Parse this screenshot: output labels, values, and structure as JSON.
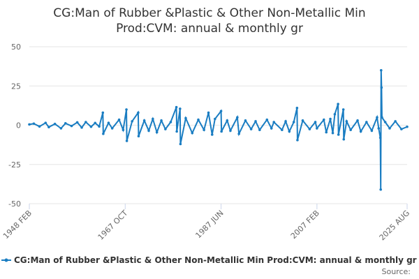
{
  "chart_data": {
    "type": "line",
    "title": "CG:Man of Rubber &Plastic & Other Non-Metallic Min Prod:CVM: annual & monthly gr",
    "source": "Source:",
    "x": [
      "1948 FEB",
      "1949 JAN",
      "1950 MAR",
      "1951 JUN",
      "1952 FEB",
      "1953 MAY",
      "1954 AUG",
      "1955 JUL",
      "1956 OCT",
      "1957 DEC",
      "1958 NOV",
      "1959 SEP",
      "1960 OCT",
      "1961 AUG",
      "1962 JUN",
      "1963 MAR",
      "1963 APR",
      "1964 MAY",
      "1965 FEB",
      "1966 JUL",
      "1967 MAY",
      "1968 JAN",
      "1968 FEB",
      "1969 MAR",
      "1970 JUN",
      "1970 JUL",
      "1971 SEP",
      "1972 AUG",
      "1973 JUN",
      "1974 APR",
      "1975 MAR",
      "1976 JAN",
      "1977 FEB",
      "1978 APR",
      "1978 MAY",
      "1979 JAN",
      "1979 FEB",
      "1980 MAR",
      "1981 JUL",
      "1982 OCT",
      "1983 DEC",
      "1984 NOV",
      "1985 AUG",
      "1986 MAR",
      "1987 JUN",
      "1987 JUL",
      "1988 SEP",
      "1989 MAY",
      "1990 OCT",
      "1991 FEB",
      "1992 JUN",
      "1993 AUG",
      "1994 JUL",
      "1995 MAY",
      "1996 NOV",
      "1997 OCT",
      "1998 APR",
      "1999 DEC",
      "2000 SEP",
      "2001 JUN",
      "2002 MAY",
      "2003 JAN",
      "2003 FEB",
      "2004 MAR",
      "2005 AUG",
      "2006 OCT",
      "2007 FEB",
      "2008 JUL",
      "2009 JAN",
      "2009 NOV",
      "2010 MAY",
      "2010 OCT",
      "2011 JUN",
      "2011 JUL",
      "2012 JUL",
      "2012 AUG",
      "2013 MAR",
      "2014 JAN",
      "2015 JUN",
      "2016 FEB",
      "2017 APR",
      "2018 MAY",
      "2019 JUN",
      "2019 OCT",
      "2020 FEB",
      "2020 MAR",
      "2020 APR",
      "2020 MAY",
      "2020 JUN",
      "2021 FEB",
      "2022 JAN",
      "2023 MAR",
      "2024 JUN",
      "2025 AUG"
    ],
    "series": [
      {
        "name": "CG:Man of Rubber &Plastic & Other Non-Metallic Min Prod:CVM: annual & monthly gr",
        "color": "#1a7dc2",
        "values": [
          0.5,
          1.0,
          -0.8,
          1.5,
          -1.2,
          0.8,
          -2.0,
          1.2,
          -0.5,
          1.8,
          -1.5,
          2.0,
          -1.0,
          1.4,
          -0.8,
          8.0,
          -5.5,
          1.5,
          -2.0,
          3.5,
          -3.0,
          10.0,
          -10.0,
          2.5,
          8.0,
          -7.0,
          3.0,
          -3.5,
          4.0,
          -4.5,
          3.0,
          -2.5,
          2.0,
          11.5,
          -4.0,
          10.5,
          -12.0,
          4.5,
          -5.0,
          3.5,
          -3.0,
          8.0,
          -6.0,
          4.0,
          9.0,
          -4.0,
          3.0,
          -3.5,
          5.0,
          -5.5,
          3.0,
          -2.5,
          2.5,
          -3.0,
          3.5,
          -2.0,
          2.0,
          -3.0,
          2.5,
          -4.0,
          2.0,
          11.0,
          -9.5,
          3.0,
          -2.5,
          2.0,
          -2.0,
          3.5,
          -4.5,
          4.0,
          -5.0,
          7.0,
          13.5,
          -6.0,
          10.0,
          -9.0,
          2.5,
          -3.0,
          3.0,
          -4.0,
          2.0,
          -3.5,
          5.0,
          -2.0,
          -8.0,
          -41.0,
          35.0,
          24.0,
          5.0,
          2.0,
          -2.0,
          2.5,
          -2.5,
          -1.0
        ]
      }
    ],
    "xlim": [
      "1948 FEB",
      "2025 AUG"
    ],
    "xticks": [
      "1948 FEB",
      "1967 OCT",
      "1987 JUN",
      "2007 FEB",
      "2025 AUG"
    ],
    "ylim": [
      -50,
      50
    ],
    "yticks": [
      50,
      25,
      0,
      -25,
      -50
    ],
    "grid": true
  }
}
